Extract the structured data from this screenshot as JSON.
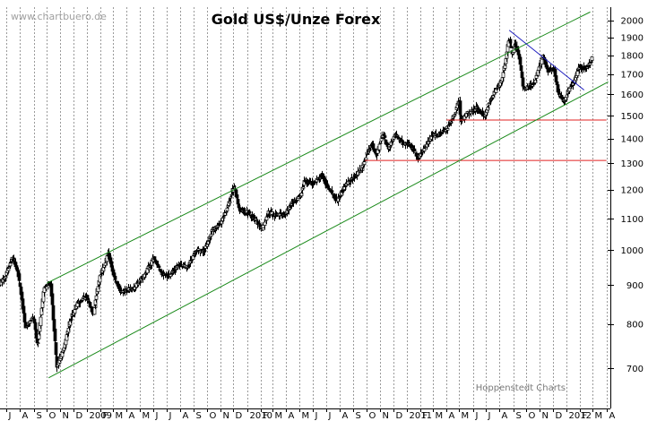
{
  "chart_data": {
    "type": "candlestick",
    "title": "Gold US$/Unze Forex",
    "watermark": "www.chartbuero.de",
    "credit": "Hoppenstedt Charts",
    "y_scale": "log",
    "ylim": [
      620,
      2080
    ],
    "y_ticks": [
      700,
      800,
      900,
      1000,
      1100,
      1200,
      1300,
      1400,
      1500,
      1600,
      1700,
      1800,
      1900,
      2000
    ],
    "x_start": "2008-06-16",
    "x_end": "2012-04-10",
    "x_ticks": [
      {
        "date": "2008-07-01",
        "label": "J"
      },
      {
        "date": "2008-08-01",
        "label": "A"
      },
      {
        "date": "2008-09-01",
        "label": "S"
      },
      {
        "date": "2008-10-01",
        "label": "O"
      },
      {
        "date": "2008-11-01",
        "label": "N"
      },
      {
        "date": "2008-12-01",
        "label": "D"
      },
      {
        "date": "2009-01-01",
        "label": "2009"
      },
      {
        "date": "2009-02-01",
        "label": "F"
      },
      {
        "date": "2009-03-01",
        "label": "M"
      },
      {
        "date": "2009-04-01",
        "label": "A"
      },
      {
        "date": "2009-05-01",
        "label": "M"
      },
      {
        "date": "2009-06-01",
        "label": "J"
      },
      {
        "date": "2009-07-01",
        "label": "J"
      },
      {
        "date": "2009-08-01",
        "label": "A"
      },
      {
        "date": "2009-09-01",
        "label": "S"
      },
      {
        "date": "2009-10-01",
        "label": "O"
      },
      {
        "date": "2009-11-01",
        "label": "N"
      },
      {
        "date": "2009-12-01",
        "label": "D"
      },
      {
        "date": "2010-01-01",
        "label": "2010"
      },
      {
        "date": "2010-02-01",
        "label": "F"
      },
      {
        "date": "2010-03-01",
        "label": "M"
      },
      {
        "date": "2010-04-01",
        "label": "A"
      },
      {
        "date": "2010-05-01",
        "label": "M"
      },
      {
        "date": "2010-06-01",
        "label": "J"
      },
      {
        "date": "2010-07-01",
        "label": "J"
      },
      {
        "date": "2010-08-01",
        "label": "A"
      },
      {
        "date": "2010-09-01",
        "label": "S"
      },
      {
        "date": "2010-10-01",
        "label": "O"
      },
      {
        "date": "2010-11-01",
        "label": "N"
      },
      {
        "date": "2010-12-01",
        "label": "D"
      },
      {
        "date": "2011-01-01",
        "label": "2011"
      },
      {
        "date": "2011-02-01",
        "label": "F"
      },
      {
        "date": "2011-03-01",
        "label": "M"
      },
      {
        "date": "2011-04-01",
        "label": "A"
      },
      {
        "date": "2011-05-01",
        "label": "M"
      },
      {
        "date": "2011-06-01",
        "label": "J"
      },
      {
        "date": "2011-07-01",
        "label": "J"
      },
      {
        "date": "2011-08-01",
        "label": "A"
      },
      {
        "date": "2011-09-01",
        "label": "S"
      },
      {
        "date": "2011-10-01",
        "label": "O"
      },
      {
        "date": "2011-11-01",
        "label": "N"
      },
      {
        "date": "2011-12-01",
        "label": "D"
      },
      {
        "date": "2012-01-01",
        "label": "2012"
      },
      {
        "date": "2012-02-01",
        "label": "F"
      },
      {
        "date": "2012-03-01",
        "label": "M"
      },
      {
        "date": "2012-04-01",
        "label": "A"
      }
    ],
    "grid": true,
    "price_path": [
      [
        "2008-06-16",
        900
      ],
      [
        "2008-07-01",
        930
      ],
      [
        "2008-07-15",
        980
      ],
      [
        "2008-08-01",
        910
      ],
      [
        "2008-08-15",
        790
      ],
      [
        "2008-09-01",
        820
      ],
      [
        "2008-09-11",
        750
      ],
      [
        "2008-09-25",
        890
      ],
      [
        "2008-10-10",
        900
      ],
      [
        "2008-10-24",
        700
      ],
      [
        "2008-11-10",
        740
      ],
      [
        "2008-11-25",
        810
      ],
      [
        "2008-12-10",
        850
      ],
      [
        "2008-12-31",
        870
      ],
      [
        "2009-01-15",
        820
      ],
      [
        "2009-02-01",
        920
      ],
      [
        "2009-02-20",
        990
      ],
      [
        "2009-03-05",
        920
      ],
      [
        "2009-03-20",
        880
      ],
      [
        "2009-04-06",
        890
      ],
      [
        "2009-04-20",
        890
      ],
      [
        "2009-05-15",
        930
      ],
      [
        "2009-06-03",
        975
      ],
      [
        "2009-06-20",
        930
      ],
      [
        "2009-07-08",
        925
      ],
      [
        "2009-07-31",
        955
      ],
      [
        "2009-08-20",
        950
      ],
      [
        "2009-09-08",
        1000
      ],
      [
        "2009-09-25",
        995
      ],
      [
        "2009-10-15",
        1060
      ],
      [
        "2009-11-05",
        1090
      ],
      [
        "2009-11-20",
        1140
      ],
      [
        "2009-12-03",
        1215
      ],
      [
        "2009-12-15",
        1125
      ],
      [
        "2010-01-05",
        1120
      ],
      [
        "2010-01-20",
        1100
      ],
      [
        "2010-02-05",
        1065
      ],
      [
        "2010-02-20",
        1120
      ],
      [
        "2010-03-10",
        1110
      ],
      [
        "2010-03-30",
        1115
      ],
      [
        "2010-04-15",
        1150
      ],
      [
        "2010-05-05",
        1180
      ],
      [
        "2010-05-14",
        1235
      ],
      [
        "2010-06-01",
        1220
      ],
      [
        "2010-06-21",
        1255
      ],
      [
        "2010-07-05",
        1210
      ],
      [
        "2010-07-27",
        1160
      ],
      [
        "2010-08-15",
        1215
      ],
      [
        "2010-09-01",
        1245
      ],
      [
        "2010-09-20",
        1275
      ],
      [
        "2010-10-05",
        1340
      ],
      [
        "2010-10-15",
        1375
      ],
      [
        "2010-10-25",
        1330
      ],
      [
        "2010-11-09",
        1420
      ],
      [
        "2010-11-20",
        1355
      ],
      [
        "2010-12-07",
        1415
      ],
      [
        "2010-12-25",
        1380
      ],
      [
        "2011-01-10",
        1375
      ],
      [
        "2011-01-28",
        1320
      ],
      [
        "2011-02-15",
        1370
      ],
      [
        "2011-03-01",
        1415
      ],
      [
        "2011-03-15",
        1410
      ],
      [
        "2011-04-05",
        1445
      ],
      [
        "2011-04-20",
        1500
      ],
      [
        "2011-05-02",
        1570
      ],
      [
        "2011-05-05",
        1475
      ],
      [
        "2011-05-20",
        1510
      ],
      [
        "2011-06-10",
        1535
      ],
      [
        "2011-06-30",
        1500
      ],
      [
        "2011-07-12",
        1575
      ],
      [
        "2011-07-25",
        1620
      ],
      [
        "2011-08-05",
        1660
      ],
      [
        "2011-08-15",
        1760
      ],
      [
        "2011-08-23",
        1900
      ],
      [
        "2011-08-30",
        1800
      ],
      [
        "2011-09-06",
        1870
      ],
      [
        "2011-09-16",
        1800
      ],
      [
        "2011-09-26",
        1620
      ],
      [
        "2011-10-05",
        1640
      ],
      [
        "2011-10-20",
        1650
      ],
      [
        "2011-11-08",
        1790
      ],
      [
        "2011-11-20",
        1720
      ],
      [
        "2011-12-05",
        1730
      ],
      [
        "2011-12-15",
        1600
      ],
      [
        "2011-12-29",
        1565
      ],
      [
        "2012-01-10",
        1640
      ],
      [
        "2012-01-20",
        1660
      ],
      [
        "2012-01-30",
        1740
      ],
      [
        "2012-02-10",
        1730
      ],
      [
        "2012-02-20",
        1740
      ],
      [
        "2012-02-28",
        1780
      ]
    ],
    "channel_lines": [
      {
        "color": "#1a8a1a",
        "from": [
          "2008-10-01",
          905
        ],
        "to": [
          "2012-02-24",
          2050
        ]
      },
      {
        "color": "#1a8a1a",
        "from": [
          "2008-10-05",
          680
        ],
        "to": [
          "2012-04-05",
          1660
        ]
      }
    ],
    "resistance_lines": [
      {
        "color": "#e02020",
        "from": [
          "2010-09-27",
          1310
        ],
        "to": [
          "2012-04-01",
          1310
        ]
      },
      {
        "color": "#e02020",
        "from": [
          "2011-04-01",
          1480
        ],
        "to": [
          "2012-04-01",
          1480
        ]
      }
    ],
    "trend_lines": [
      {
        "color": "#2020c0",
        "from": [
          "2011-08-23",
          1940
        ],
        "to": [
          "2012-02-10",
          1620
        ]
      }
    ]
  }
}
